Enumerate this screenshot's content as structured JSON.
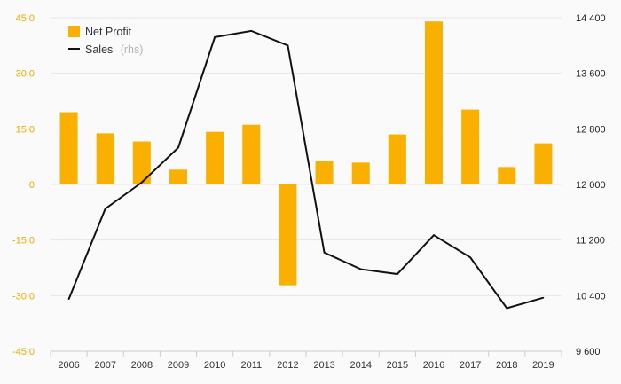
{
  "chart_data": {
    "type": "bar+line",
    "categories": [
      "2006",
      "2007",
      "2008",
      "2009",
      "2010",
      "2011",
      "2012",
      "2013",
      "2014",
      "2015",
      "2016",
      "2017",
      "2018",
      "2019"
    ],
    "series": [
      {
        "name": "Net Profit",
        "type": "bar",
        "axis": "left",
        "color": "#f9b000",
        "values": [
          19.5,
          13.8,
          11.6,
          4.0,
          14.2,
          16.1,
          -27.2,
          6.3,
          5.9,
          13.5,
          44.0,
          20.2,
          4.7,
          11.1
        ]
      },
      {
        "name": "Sales",
        "note": "(rhs)",
        "type": "line",
        "axis": "right",
        "color": "#111111",
        "values": [
          10350,
          11650,
          12030,
          12530,
          14120,
          14210,
          14000,
          11020,
          10780,
          10710,
          11270,
          10950,
          10220,
          10370
        ]
      }
    ],
    "left_axis": {
      "ylim": [
        -45,
        45
      ],
      "ticks": [
        45,
        30,
        15,
        0,
        -15,
        -30,
        -45
      ],
      "tick_labels": [
        "45.0",
        "30.0",
        "15.0",
        "0",
        "-15.0",
        "-30.0",
        "-45.0"
      ],
      "color": "#f4a800"
    },
    "right_axis": {
      "ylim": [
        9600,
        14400
      ],
      "ticks": [
        14400,
        13600,
        12800,
        12000,
        11200,
        10400,
        9600
      ],
      "tick_labels": [
        "14 400",
        "13 600",
        "12 800",
        "12 000",
        "11 200",
        "10 400",
        "9 600"
      ],
      "color": "#222222"
    },
    "grid": true,
    "legend": "top-left",
    "title": "",
    "xlabel": "",
    "ylabel": ""
  }
}
